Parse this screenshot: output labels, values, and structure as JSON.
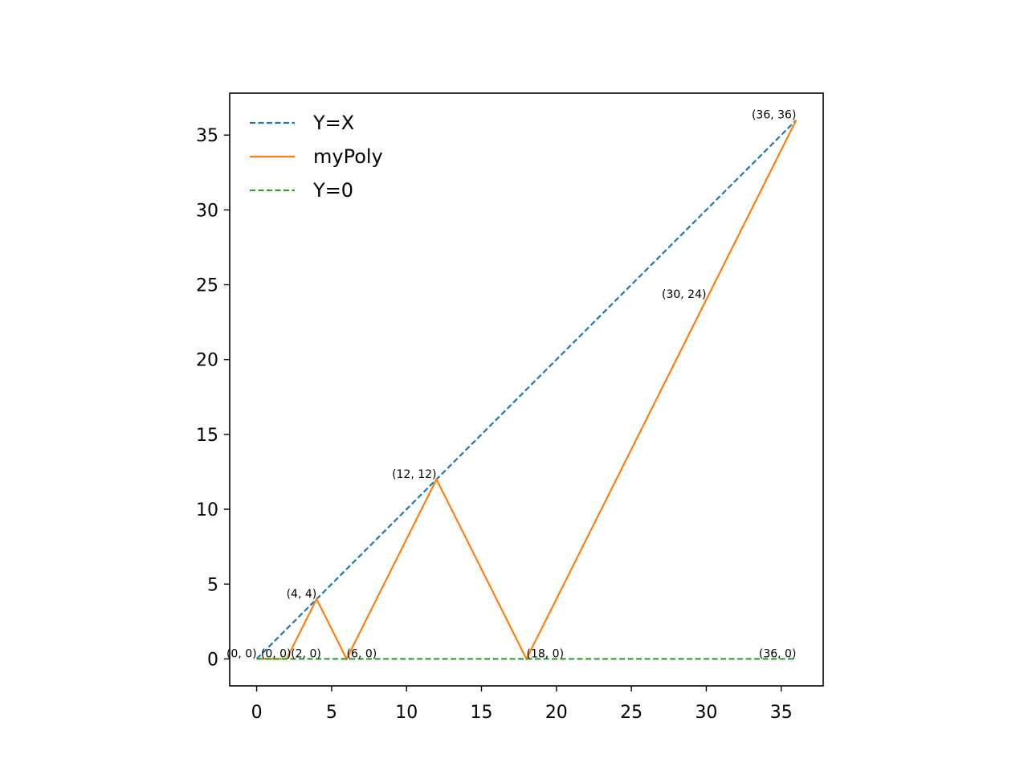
{
  "chart_data": {
    "type": "line",
    "title": "",
    "xlabel": "",
    "ylabel": "",
    "xlim": [
      -1.8,
      37.8
    ],
    "ylim": [
      -1.8,
      37.8
    ],
    "xticks": [
      0,
      5,
      10,
      15,
      20,
      25,
      30,
      35
    ],
    "yticks": [
      0,
      5,
      10,
      15,
      20,
      25,
      30,
      35
    ],
    "grid": false,
    "legend": {
      "placement": "top-left",
      "frame": false
    },
    "series": [
      {
        "name": "Y=X",
        "style": "dashed",
        "color": "#1f77b4",
        "x": [
          0,
          36
        ],
        "y": [
          0,
          36
        ]
      },
      {
        "name": "myPoly",
        "style": "solid",
        "color": "#ff7f0e",
        "x": [
          0,
          2,
          4,
          6,
          12,
          18,
          30,
          36
        ],
        "y": [
          0,
          0,
          4,
          0,
          12,
          0,
          24,
          36
        ]
      },
      {
        "name": "Y=0",
        "style": "dashed",
        "color": "#2ca02c",
        "x": [
          0,
          36
        ],
        "y": [
          0,
          0
        ]
      }
    ],
    "annotations": [
      {
        "text": "(0, 0)",
        "x": 0,
        "y": 0,
        "align": "end"
      },
      {
        "text": "(0, 0)",
        "x": 2.3,
        "y": 0,
        "align": "end"
      },
      {
        "text": "(2, 0)",
        "x": 4.3,
        "y": 0,
        "align": "end"
      },
      {
        "text": "(4, 4)",
        "x": 4,
        "y": 4,
        "align": "end"
      },
      {
        "text": "(6, 0)",
        "x": 6,
        "y": 0,
        "align": "start"
      },
      {
        "text": "(12, 12)",
        "x": 12,
        "y": 12,
        "align": "end"
      },
      {
        "text": "(18, 0)",
        "x": 18,
        "y": 0,
        "align": "start"
      },
      {
        "text": "(30, 24)",
        "x": 30,
        "y": 24,
        "align": "end"
      },
      {
        "text": "(36, 36)",
        "x": 36,
        "y": 36,
        "align": "end"
      },
      {
        "text": "(36, 0)",
        "x": 36,
        "y": 0,
        "align": "end"
      }
    ]
  }
}
